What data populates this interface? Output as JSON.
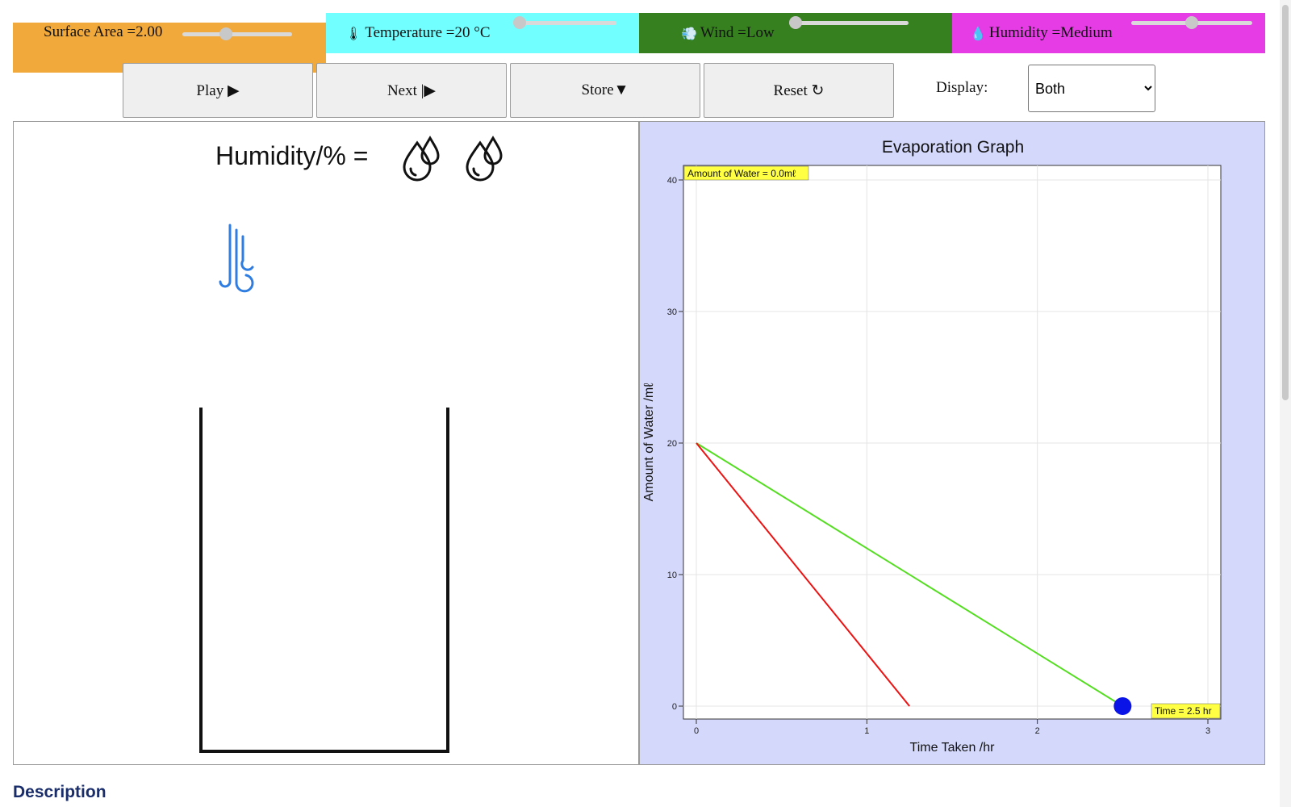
{
  "controls": {
    "surface_area": {
      "label": "Surface Area =2.00",
      "level": 0.38
    },
    "temperature": {
      "icon": "thermometer-icon",
      "glyph": "🌡",
      "label": "Temperature =20 °C",
      "level": 0.0
    },
    "wind": {
      "icon": "wind-icon",
      "glyph": "💨",
      "label": "Wind =Low",
      "level": 0.0
    },
    "humidity": {
      "icon": "droplet-icon",
      "glyph": "💧",
      "label": "Humidity =Medium",
      "level": 0.5
    }
  },
  "toolbar": {
    "play_label": "Play ▶",
    "next_label": "Next |▶",
    "store_label": "Store▼",
    "reset_label": "Reset ↻",
    "display_label": "Display:",
    "display_value": "Both"
  },
  "simulation": {
    "humidity_title": "Humidity/% =",
    "humidity_drops": 2
  },
  "colors": {
    "surface": "#f2a93b",
    "temperature": "#72ffff",
    "wind": "#37801f",
    "humidity": "#e63ce6",
    "graph_bg": "#d4d8fb",
    "green_line": "#55dd22",
    "red_line": "#ee1111",
    "marker": "#0a14e6",
    "label_bg": "#ffff44"
  },
  "chart_data": {
    "type": "line",
    "title": "Evaporation Graph",
    "xlabel": "Time Taken /hr",
    "ylabel": "Amount of Water /mℓ",
    "xlim": [
      0,
      3
    ],
    "ylim": [
      0,
      40
    ],
    "xticks": [
      0,
      1,
      2,
      3
    ],
    "yticks": [
      0,
      10,
      20,
      30,
      40
    ],
    "grid": true,
    "series": [
      {
        "color": "#55dd22",
        "x": [
          0,
          2.5
        ],
        "y": [
          20,
          0
        ]
      },
      {
        "color": "#ee1111",
        "x": [
          0,
          1.25
        ],
        "y": [
          20,
          0
        ]
      }
    ],
    "marker": {
      "x": 2.5,
      "y": 0
    },
    "annotations": {
      "water": "Amount of Water = 0.0mℓ",
      "time": "Time = 2.5 hr"
    }
  },
  "footer": {
    "description_label": "Description"
  }
}
